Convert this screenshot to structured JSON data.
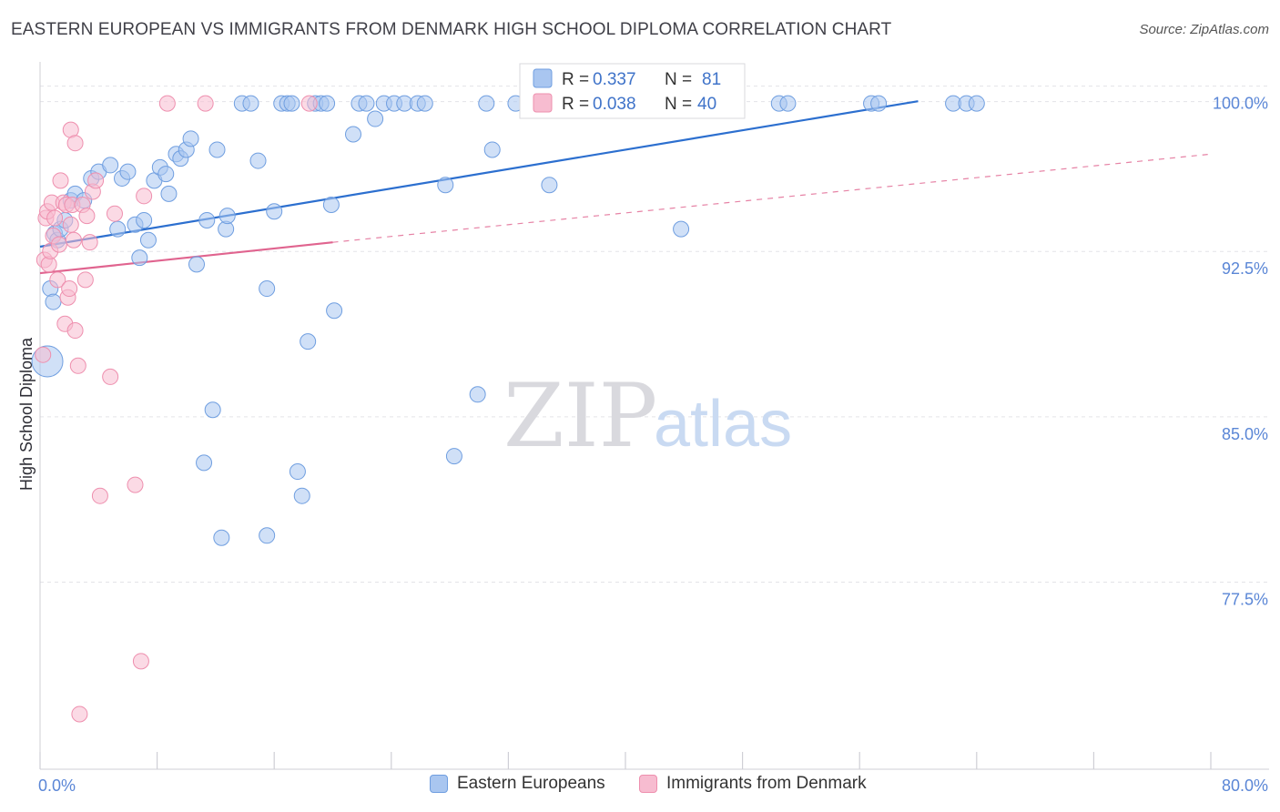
{
  "header": {
    "title": "EASTERN EUROPEAN VS IMMIGRANTS FROM DENMARK HIGH SCHOOL DIPLOMA CORRELATION CHART",
    "source": "Source: ZipAtlas.com"
  },
  "watermark": {
    "zip": "ZIP",
    "atlas": "atlas"
  },
  "colors": {
    "blue_fill": "#a9c6f0",
    "blue_stroke": "#6f9ee0",
    "blue_line": "#2c6fcf",
    "pink_fill": "#f7bcd0",
    "pink_stroke": "#ee8fae",
    "pink_line": "#e0648f",
    "tick_text": "#5a86d6",
    "grid": "#e3e3e8"
  },
  "legend": {
    "rows": [
      {
        "r_label": "R =",
        "r_value": "0.337",
        "n_label": "N =",
        "n_value": "81"
      },
      {
        "r_label": "R =",
        "r_value": "0.038",
        "n_label": "N =",
        "n_value": "40"
      }
    ]
  },
  "chart_data": {
    "type": "scatter",
    "title": "EASTERN EUROPEAN VS IMMIGRANTS FROM DENMARK HIGH SCHOOL DIPLOMA CORRELATION CHART",
    "xlabel": "",
    "ylabel": "High School Diploma",
    "xlim": [
      0,
      80
    ],
    "ylim": [
      69.8,
      101.8
    ],
    "x_tick_labels": [
      "0.0%",
      "80.0%"
    ],
    "y_ticks": [
      77.5,
      85.0,
      92.5,
      100.0
    ],
    "y_tick_labels": [
      "77.5%",
      "85.0%",
      "92.5%",
      "100.0%"
    ],
    "grid": true,
    "series": [
      {
        "name": "Eastern Europeans",
        "color": "#a9c6f0",
        "R": 0.337,
        "N": 81,
        "trend": {
          "x": [
            0,
            60
          ],
          "y": [
            93.5,
            100.1
          ],
          "dashed": false
        },
        "points": [
          [
            0.5,
            88.3
          ],
          [
            0.7,
            91.6
          ],
          [
            0.9,
            91.0
          ],
          [
            1.0,
            94.1
          ],
          [
            1.2,
            93.8
          ],
          [
            1.4,
            94.3
          ],
          [
            1.7,
            94.7
          ],
          [
            2.1,
            95.6
          ],
          [
            2.4,
            95.9
          ],
          [
            3.0,
            95.6
          ],
          [
            3.5,
            96.6
          ],
          [
            4.0,
            96.9
          ],
          [
            4.8,
            97.2
          ],
          [
            5.3,
            94.3
          ],
          [
            5.6,
            96.6
          ],
          [
            6.0,
            96.9
          ],
          [
            6.5,
            94.5
          ],
          [
            6.8,
            93.0
          ],
          [
            7.1,
            94.7
          ],
          [
            7.4,
            93.8
          ],
          [
            7.8,
            96.5
          ],
          [
            8.2,
            97.1
          ],
          [
            8.6,
            96.8
          ],
          [
            8.8,
            95.9
          ],
          [
            9.3,
            97.7
          ],
          [
            9.6,
            97.5
          ],
          [
            10.0,
            97.9
          ],
          [
            10.3,
            98.4
          ],
          [
            10.7,
            92.7
          ],
          [
            11.2,
            83.7
          ],
          [
            11.4,
            94.7
          ],
          [
            11.8,
            86.1
          ],
          [
            12.1,
            97.9
          ],
          [
            12.4,
            80.3
          ],
          [
            12.7,
            94.3
          ],
          [
            12.8,
            94.9
          ],
          [
            13.8,
            100.0
          ],
          [
            14.4,
            100.0
          ],
          [
            14.9,
            97.4
          ],
          [
            15.5,
            80.4
          ],
          [
            15.5,
            91.6
          ],
          [
            16.0,
            95.1
          ],
          [
            16.5,
            100.0
          ],
          [
            16.9,
            100.0
          ],
          [
            17.2,
            100.0
          ],
          [
            17.6,
            83.3
          ],
          [
            17.9,
            82.2
          ],
          [
            18.3,
            89.2
          ],
          [
            18.8,
            100.0
          ],
          [
            19.2,
            100.0
          ],
          [
            19.6,
            100.0
          ],
          [
            19.9,
            95.4
          ],
          [
            20.1,
            90.6
          ],
          [
            21.4,
            98.6
          ],
          [
            21.8,
            100.0
          ],
          [
            22.3,
            100.0
          ],
          [
            22.9,
            99.3
          ],
          [
            23.5,
            100.0
          ],
          [
            24.2,
            100.0
          ],
          [
            24.9,
            100.0
          ],
          [
            25.8,
            100.0
          ],
          [
            26.3,
            100.0
          ],
          [
            27.7,
            96.3
          ],
          [
            28.3,
            84.0
          ],
          [
            29.9,
            86.8
          ],
          [
            30.5,
            100.0
          ],
          [
            30.9,
            97.9
          ],
          [
            32.5,
            100.0
          ],
          [
            33.5,
            100.0
          ],
          [
            34.8,
            96.3
          ],
          [
            40.1,
            100.0
          ],
          [
            41.9,
            100.0
          ],
          [
            43.8,
            94.3
          ],
          [
            46.0,
            100.0
          ],
          [
            50.5,
            100.0
          ],
          [
            51.1,
            100.0
          ],
          [
            56.8,
            100.0
          ],
          [
            57.3,
            100.0
          ],
          [
            62.4,
            100.0
          ],
          [
            63.3,
            100.0
          ],
          [
            64.0,
            100.0
          ]
        ]
      },
      {
        "name": "Immigrants from Denmark",
        "color": "#f7bcd0",
        "R": 0.038,
        "N": 40,
        "trend": {
          "x": [
            0,
            20
          ],
          "y": [
            92.3,
            93.7
          ],
          "dashed": false,
          "extension": {
            "x": [
              20,
              80
            ],
            "y": [
              93.7,
              97.7
            ],
            "dashed": true
          }
        },
        "points": [
          [
            0.2,
            88.6
          ],
          [
            0.3,
            92.9
          ],
          [
            0.4,
            94.8
          ],
          [
            0.5,
            95.1
          ],
          [
            0.6,
            92.7
          ],
          [
            0.7,
            93.3
          ],
          [
            0.8,
            95.5
          ],
          [
            0.9,
            94.0
          ],
          [
            1.0,
            94.8
          ],
          [
            1.2,
            92.0
          ],
          [
            1.3,
            93.6
          ],
          [
            1.4,
            96.5
          ],
          [
            1.6,
            95.5
          ],
          [
            1.7,
            90.0
          ],
          [
            1.8,
            95.4
          ],
          [
            1.9,
            91.2
          ],
          [
            2.0,
            91.6
          ],
          [
            2.1,
            94.5
          ],
          [
            2.2,
            95.4
          ],
          [
            2.3,
            93.8
          ],
          [
            2.4,
            89.7
          ],
          [
            2.1,
            98.8
          ],
          [
            2.4,
            98.2
          ],
          [
            2.6,
            88.1
          ],
          [
            2.7,
            72.3
          ],
          [
            2.9,
            95.4
          ],
          [
            3.1,
            92.0
          ],
          [
            3.2,
            94.9
          ],
          [
            3.4,
            93.7
          ],
          [
            3.6,
            96.0
          ],
          [
            3.8,
            96.5
          ],
          [
            4.1,
            82.2
          ],
          [
            4.8,
            87.6
          ],
          [
            5.1,
            95.0
          ],
          [
            6.5,
            82.7
          ],
          [
            6.9,
            74.7
          ],
          [
            7.1,
            95.8
          ],
          [
            8.7,
            100.0
          ],
          [
            11.3,
            100.0
          ],
          [
            18.4,
            100.0
          ]
        ]
      }
    ]
  },
  "bottom_legend": [
    {
      "label": "Eastern Europeans"
    },
    {
      "label": "Immigrants from Denmark"
    }
  ]
}
